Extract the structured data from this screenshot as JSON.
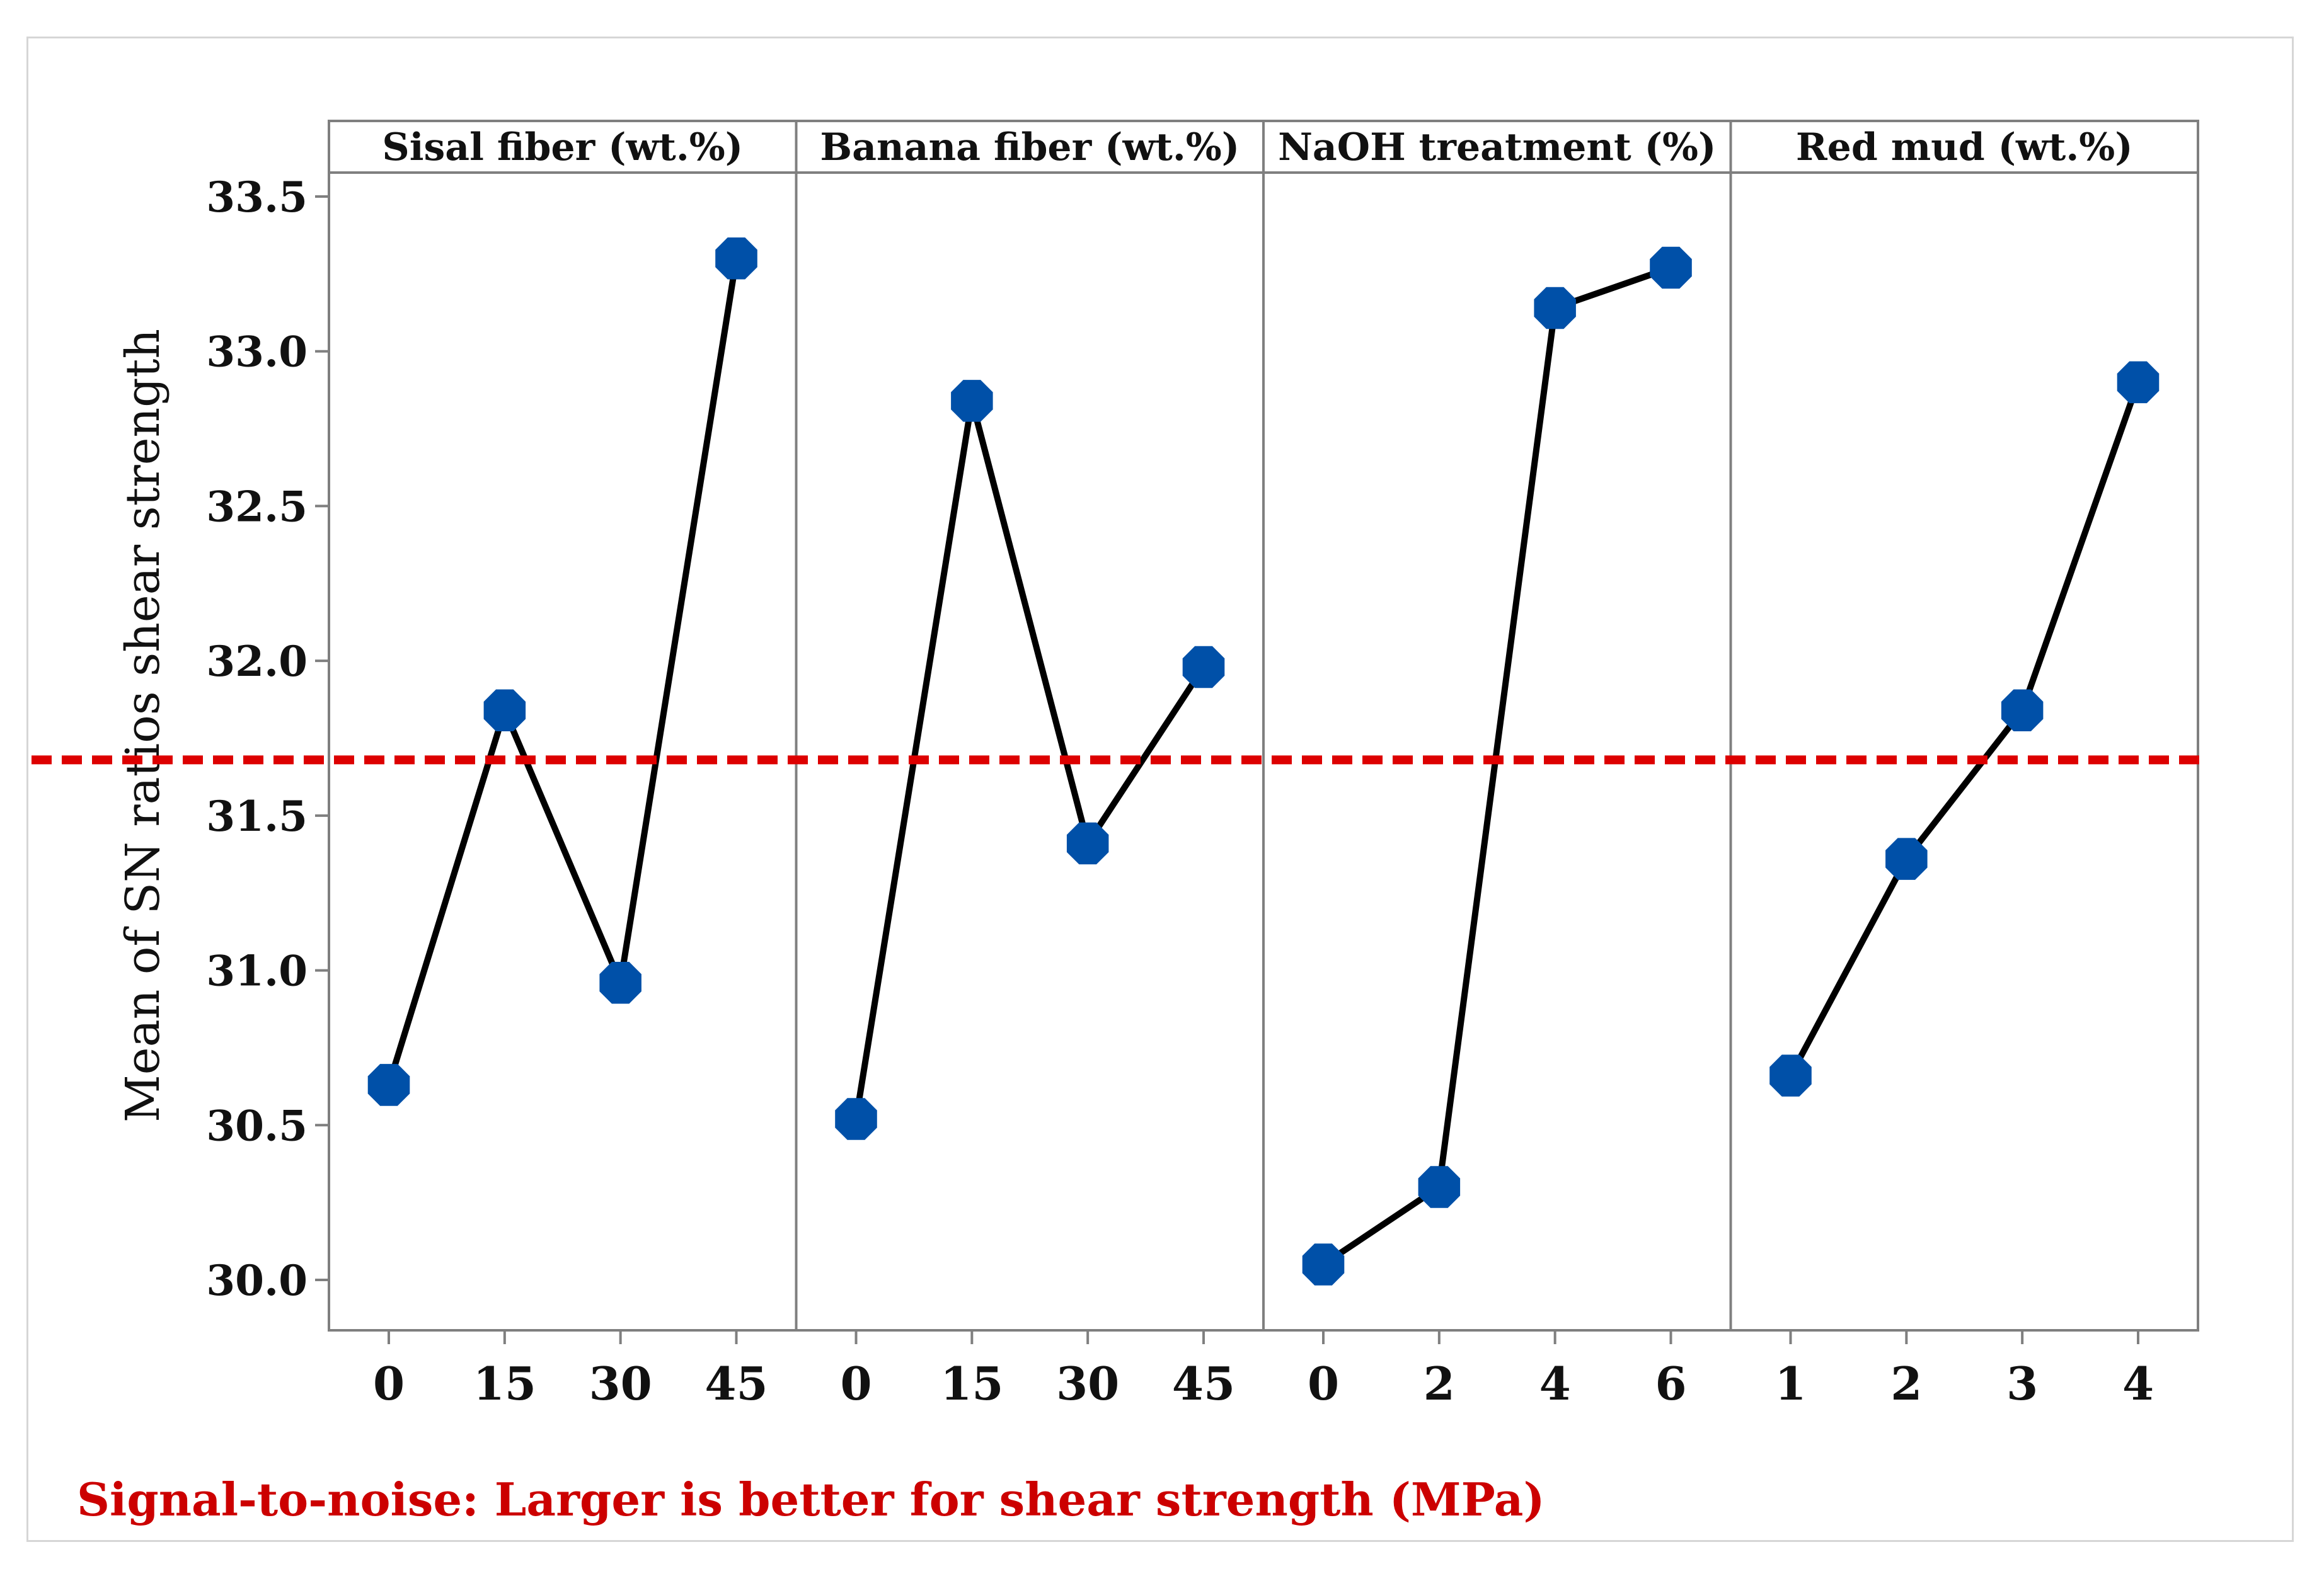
{
  "chart_data": {
    "type": "line",
    "ylabel": "Mean of SN ratios shear strength",
    "ylim": [
      29.9,
      33.6
    ],
    "yticks": [
      "30.0",
      "30.5",
      "31.0",
      "31.5",
      "32.0",
      "32.5",
      "33.0",
      "33.5"
    ],
    "reference_line": 31.68,
    "panels": [
      {
        "name": "Sisal fiber (wt.%)",
        "categories": [
          "0",
          "15",
          "30",
          "45"
        ],
        "values": [
          30.63,
          31.84,
          30.96,
          33.3
        ]
      },
      {
        "name": "Banana fiber (wt.%)",
        "categories": [
          "0",
          "15",
          "30",
          "45"
        ],
        "values": [
          30.52,
          32.84,
          31.41,
          31.98
        ]
      },
      {
        "name": "NaOH treatment (%)",
        "categories": [
          "0",
          "2",
          "4",
          "6"
        ],
        "values": [
          30.05,
          30.3,
          33.14,
          33.27
        ]
      },
      {
        "name": "Red mud (wt.%)",
        "categories": [
          "1",
          "2",
          "3",
          "4"
        ],
        "values": [
          30.66,
          31.36,
          31.84,
          32.9
        ]
      }
    ],
    "colors": {
      "marker": "#0050a8",
      "line": "#000000",
      "reference": "#dd0000",
      "frame": "#7f7f7f"
    }
  },
  "footer": "Signal-to-noise: Larger is better for shear strength (MPa)"
}
